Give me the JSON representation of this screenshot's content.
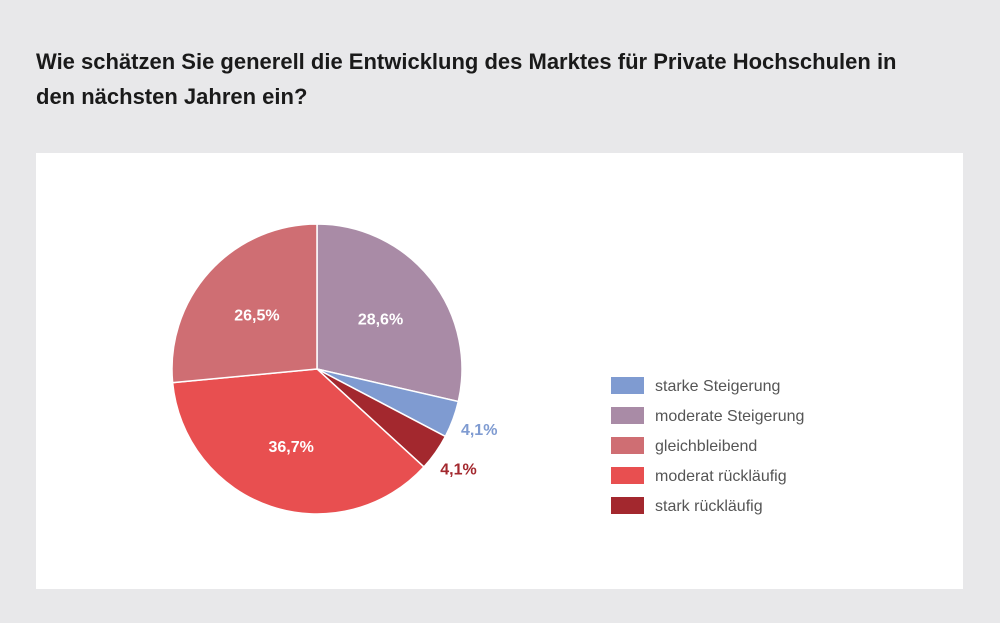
{
  "title": "Wie schätzen Sie generell die Entwicklung des Marktes für Private Hochschulen in den nächsten Jahren ein?",
  "chart_data": {
    "type": "pie",
    "title": "Wie schätzen Sie generell die Entwicklung des Marktes für Private Hochschulen in den nächsten Jahren ein?",
    "legend_position": "right",
    "slices": [
      {
        "label": "moderate Steigerung",
        "value": 28.6,
        "display": "28,6%",
        "color": "#a98ba6",
        "label_color": "#ffffff",
        "label_inside": true
      },
      {
        "label": "starke Steigerung",
        "value": 4.1,
        "display": "4,1%",
        "color": "#7f9bd1",
        "label_color": "#7f9bd1",
        "label_inside": false
      },
      {
        "label": "stark rückläufig",
        "value": 4.1,
        "display": "4,1%",
        "color": "#a3282e",
        "label_color": "#a3282e",
        "label_inside": false
      },
      {
        "label": "moderat rückläufig",
        "value": 36.7,
        "display": "36,7%",
        "color": "#e84f50",
        "label_color": "#ffffff",
        "label_inside": true
      },
      {
        "label": "gleichbleibend",
        "value": 26.5,
        "display": "26,5%",
        "color": "#cf6e73",
        "label_color": "#ffffff",
        "label_inside": true
      }
    ],
    "legend": [
      {
        "label": "starke Steigerung",
        "color": "#7f9bd1"
      },
      {
        "label": "moderate Steigerung",
        "color": "#a98ba6"
      },
      {
        "label": "gleichbleibend",
        "color": "#cf6e73"
      },
      {
        "label": "moderat rückläufig",
        "color": "#e84f50"
      },
      {
        "label": "stark rückläufig",
        "color": "#a3282e"
      }
    ]
  }
}
